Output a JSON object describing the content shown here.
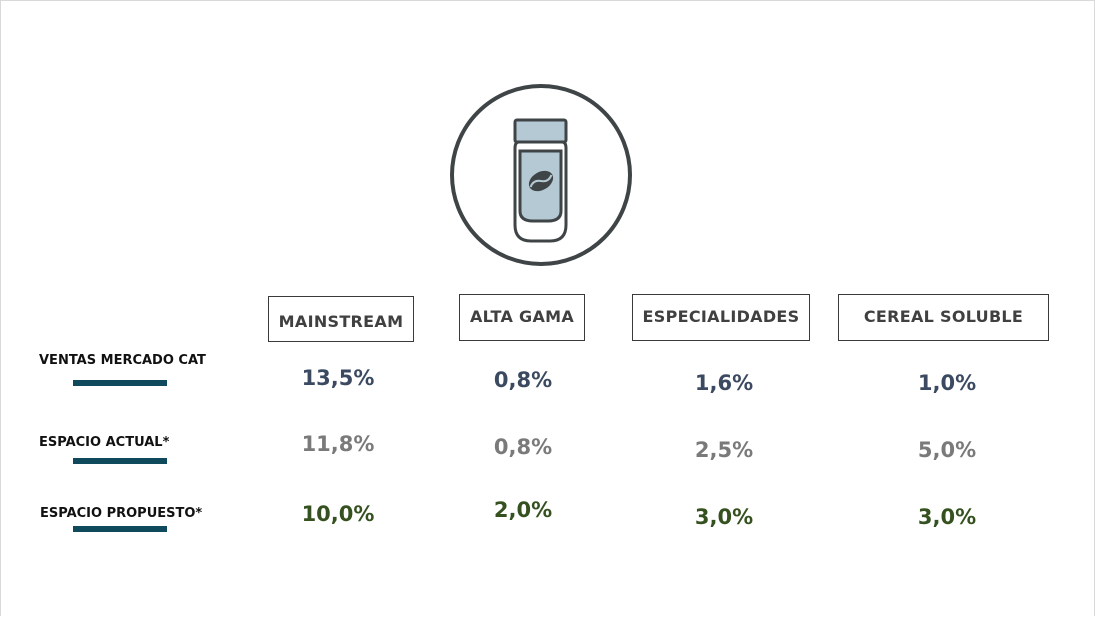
{
  "colors": {
    "sales": "#3b4a60",
    "current": "#7a7a7a",
    "proposed": "#35511f",
    "underline": "#0f4a5c",
    "icon_outline": "#3f4447",
    "icon_fill": "#b4c9d4"
  },
  "icon": {
    "name": "coffee-jar-icon"
  },
  "columns": [
    "MAINSTREAM",
    "ALTA GAMA",
    "ESPECIALIDADES",
    "CEREAL SOLUBLE"
  ],
  "rows": [
    {
      "label": "VENTAS MERCADO CAT",
      "values": [
        "13,5%",
        "0,8%",
        "1,6%",
        "1,0%"
      ]
    },
    {
      "label": "ESPACIO ACTUAL*",
      "values": [
        "11,8%",
        "0,8%",
        "2,5%",
        "5,0%"
      ]
    },
    {
      "label": "ESPACIO PROPUESTO*",
      "values": [
        "10,0%",
        "2,0%",
        "3,0%",
        "3,0%"
      ]
    }
  ]
}
